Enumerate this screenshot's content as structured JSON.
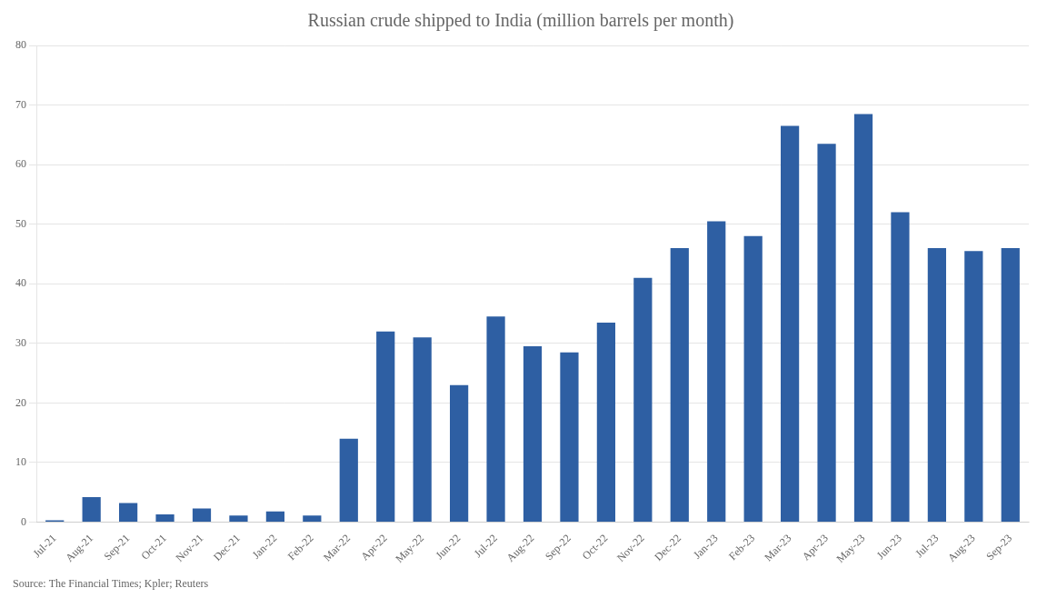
{
  "chart_data": {
    "type": "bar",
    "title": "Russian crude shipped to India (million barrels per month)",
    "source": "Source: The Financial Times; Kpler; Reuters",
    "categories": [
      "Jul-21",
      "Aug-21",
      "Sep-21",
      "Oct-21",
      "Nov-21",
      "Dec-21",
      "Jan-22",
      "Feb-22",
      "Mar-22",
      "Apr-22",
      "May-22",
      "Jun-22",
      "Jul-22",
      "Aug-22",
      "Sep-22",
      "Oct-22",
      "Nov-22",
      "Dec-22",
      "Jan-23",
      "Feb-23",
      "Mar-23",
      "Apr-23",
      "May-23",
      "Jun-23",
      "Jul-23",
      "Aug-23",
      "Sep-23"
    ],
    "values": [
      0.3,
      4.2,
      3.2,
      1.3,
      2.3,
      1.1,
      1.8,
      1.1,
      14.0,
      32.0,
      31.0,
      23.0,
      34.5,
      29.5,
      28.5,
      33.5,
      41.0,
      46.0,
      50.5,
      48.0,
      66.5,
      63.5,
      68.5,
      52.0,
      46.0,
      45.5,
      46.0
    ],
    "color": "#2e5fa3",
    "ylim": [
      0,
      80
    ],
    "yticks": [
      0,
      10,
      20,
      30,
      40,
      50,
      60,
      70,
      80
    ],
    "grid": true
  }
}
